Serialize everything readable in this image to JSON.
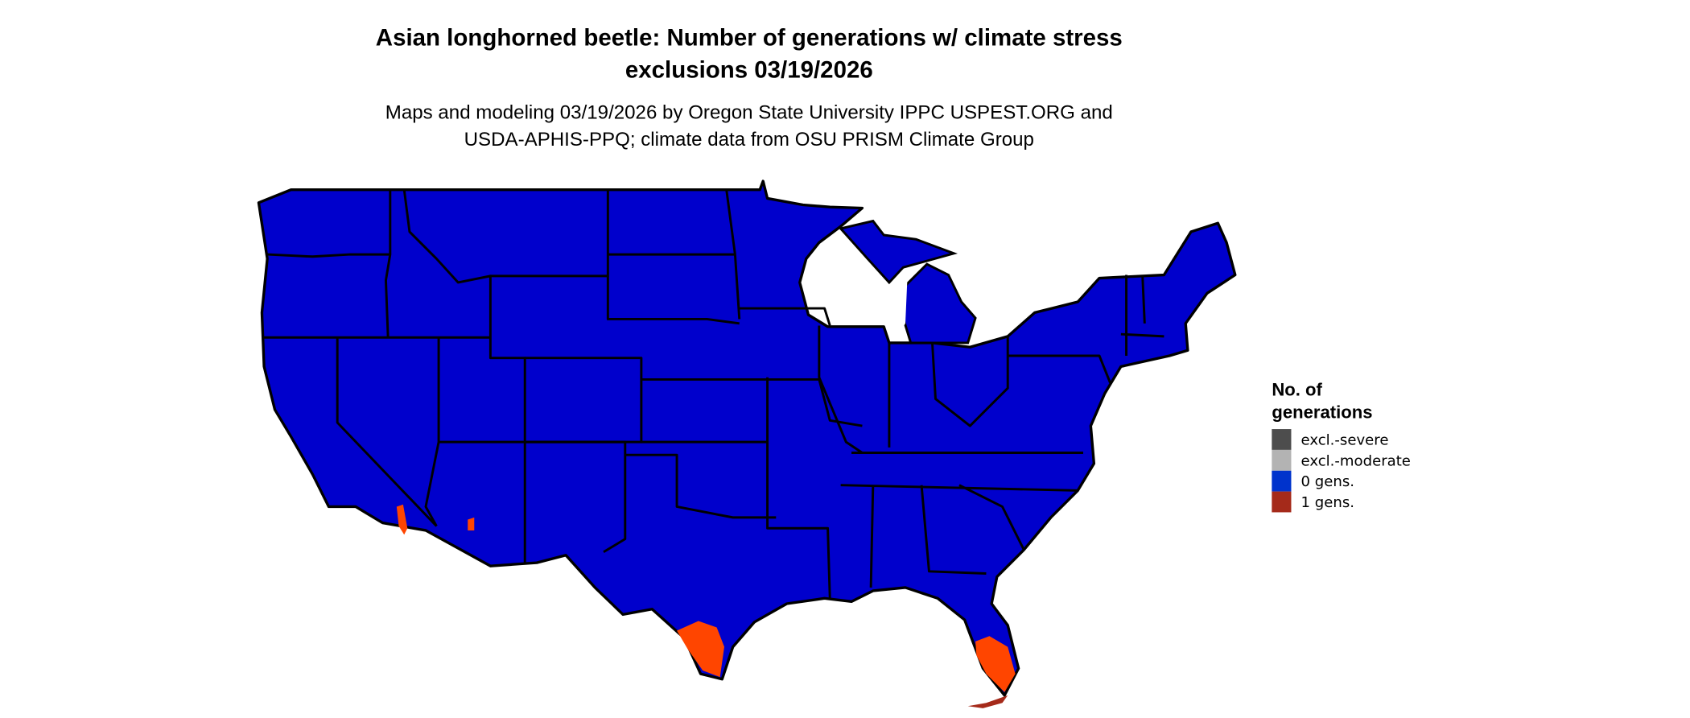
{
  "title": {
    "line1": "Asian longhorned beetle: Number of generations w/ climate stress",
    "line2": "exclusions 03/19/2026"
  },
  "subtitle": {
    "line1": "Maps and modeling 03/19/2026 by Oregon State University IPPC USPEST.ORG and",
    "line2": "USDA-APHIS-PPQ; climate data from OSU PRISM Climate Group"
  },
  "map": {
    "region": "Contiguous United States",
    "base_color": "#0000CC",
    "highlight_color": "#FF4500",
    "border_color": "#000000"
  },
  "legend": {
    "title_line1": "No. of",
    "title_line2": "generations",
    "items": [
      {
        "label": "excl.-severe",
        "color": "#4D4D4D"
      },
      {
        "label": "excl.-moderate",
        "color": "#B3B3B3"
      },
      {
        "label": "0 gens.",
        "color": "#0033CC"
      },
      {
        "label": "1 gens.",
        "color": "#A52A1A"
      }
    ]
  }
}
